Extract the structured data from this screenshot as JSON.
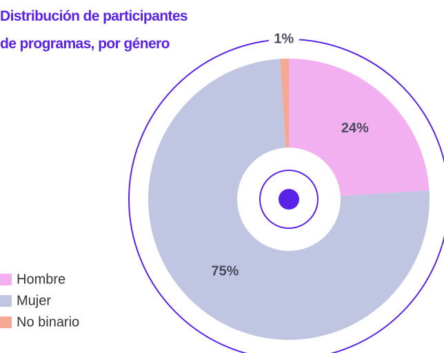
{
  "chart_data": {
    "type": "pie",
    "title": "Distribución de participantes de programas, por género",
    "categories": [
      "Hombre",
      "Mujer",
      "No binario"
    ],
    "values": [
      24,
      75,
      1
    ],
    "value_labels": [
      "24%",
      "75%",
      "1%"
    ],
    "colors": [
      "#f2b0f0",
      "#c0c6e2",
      "#f5a995"
    ],
    "donut": true,
    "legend": "bottom-left"
  }
}
